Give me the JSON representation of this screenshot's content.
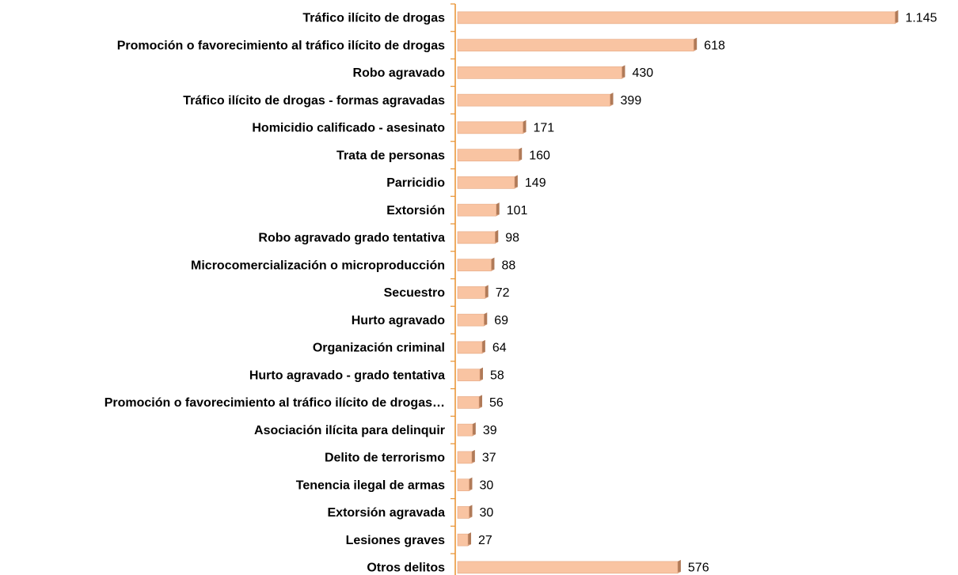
{
  "chart_data": {
    "type": "bar",
    "orientation": "horizontal",
    "categories": [
      "Tráfico ilícito de drogas",
      "Promoción o favorecimiento al tráfico ilícito de drogas",
      "Robo agravado",
      "Tráfico ilícito de drogas - formas agravadas",
      "Homicidio calificado - asesinato",
      "Trata de personas",
      "Parricidio",
      "Extorsión",
      "Robo agravado grado tentativa",
      "Microcomercialización o microproducción",
      "Secuestro",
      "Hurto agravado",
      "Organización criminal",
      "Hurto agravado - grado tentativa",
      "Promoción o favorecimiento al tráfico ilícito de drogas…",
      "Asociación ilícita para delinquir",
      "Delito de terrorismo",
      "Tenencia ilegal de armas",
      "Extorsión agravada",
      "Lesiones graves",
      "Otros delitos"
    ],
    "values": [
      1145,
      618,
      430,
      399,
      171,
      160,
      149,
      101,
      98,
      88,
      72,
      69,
      64,
      58,
      56,
      39,
      37,
      30,
      30,
      27,
      576
    ],
    "value_labels": [
      "1.145",
      "618",
      "430",
      "399",
      "171",
      "160",
      "149",
      "101",
      "98",
      "88",
      "72",
      "69",
      "64",
      "58",
      "56",
      "39",
      "37",
      "30",
      "30",
      "27",
      "576"
    ],
    "color": "#f9c4a2",
    "xlim": [
      0,
      1200
    ]
  }
}
